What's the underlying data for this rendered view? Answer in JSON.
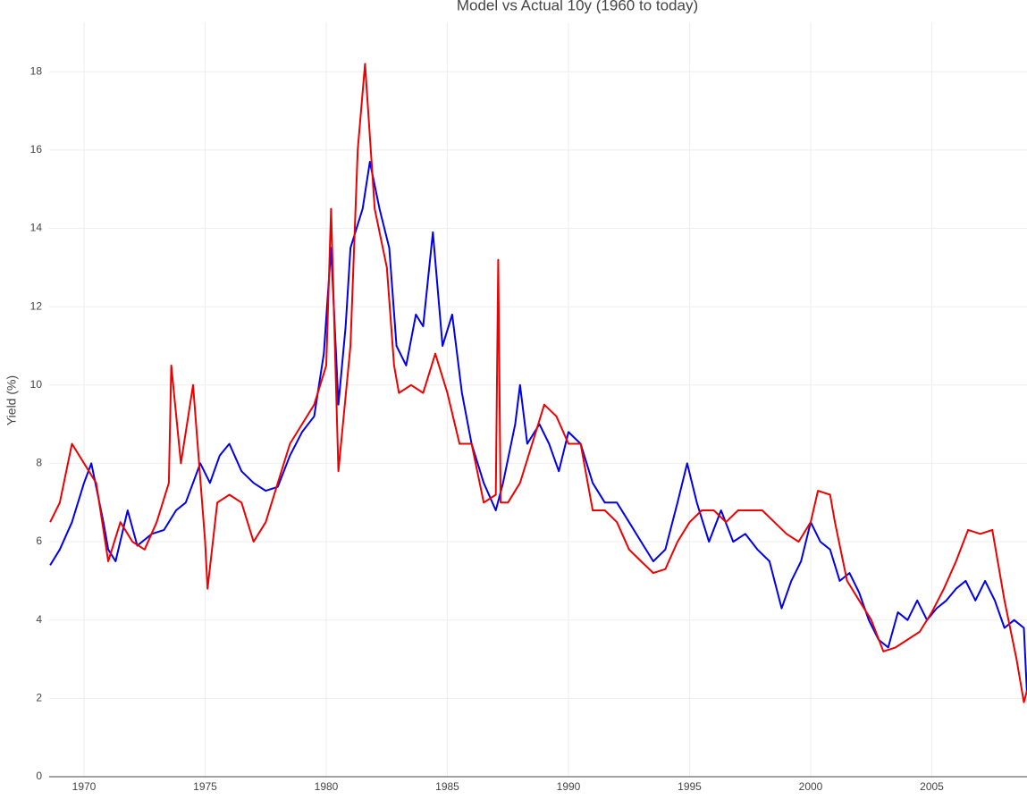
{
  "chart_data": {
    "type": "line",
    "title": "Model vs Actual 10y (1960 to today)",
    "y_label": "Yield (%)",
    "grid": true,
    "xlim": [
      1968.56,
      2008.93
    ],
    "xticks": [
      1970,
      1975,
      1980,
      1985,
      1990,
      1995,
      2000,
      2005
    ],
    "ylim": [
      0,
      19.26
    ],
    "yticks": [
      0,
      2,
      4,
      6,
      8,
      10,
      12,
      14,
      16,
      18
    ],
    "series": [
      {
        "color": "#0000ee",
        "x": [
          1968.6,
          1969.0,
          1969.5,
          1970.0,
          1970.3,
          1970.8,
          1971.0,
          1971.3,
          1971.8,
          1972.2,
          1972.8,
          1973.3,
          1973.8,
          1974.2,
          1974.8,
          1975.2,
          1975.6,
          1976.0,
          1976.5,
          1977.0,
          1977.5,
          1978.0,
          1978.5,
          1979.0,
          1979.5,
          1979.9,
          1980.2,
          1980.5,
          1980.8,
          1981.0,
          1981.5,
          1981.8,
          1982.2,
          1982.6,
          1982.9,
          1983.3,
          1983.7,
          1984.0,
          1984.4,
          1984.8,
          1985.2,
          1985.6,
          1986.0,
          1986.5,
          1987.0,
          1987.3,
          1987.8,
          1988.0,
          1988.3,
          1988.8,
          1989.2,
          1989.6,
          1990.0,
          1990.5,
          1991.0,
          1991.5,
          1992.0,
          1992.5,
          1993.0,
          1993.5,
          1994.0,
          1994.5,
          1994.9,
          1995.3,
          1995.8,
          1996.3,
          1996.8,
          1997.3,
          1997.8,
          1998.3,
          1998.8,
          1999.2,
          1999.6,
          2000.0,
          2000.4,
          2000.8,
          2001.2,
          2001.6,
          2002.0,
          2002.4,
          2002.8,
          2003.2,
          2003.6,
          2004.0,
          2004.4,
          2004.8,
          2005.2,
          2005.6,
          2006.0,
          2006.4,
          2006.8,
          2007.2,
          2007.6,
          2008.0,
          2008.4,
          2008.8,
          2008.93
        ],
        "values": [
          5.4,
          5.8,
          6.5,
          7.5,
          8.0,
          6.5,
          5.8,
          5.5,
          6.8,
          5.9,
          6.2,
          6.3,
          6.8,
          7.0,
          8.0,
          7.5,
          8.2,
          8.5,
          7.8,
          7.5,
          7.3,
          7.4,
          8.2,
          8.8,
          9.2,
          10.8,
          13.5,
          9.5,
          11.5,
          13.5,
          14.5,
          15.7,
          14.5,
          13.5,
          11.0,
          10.5,
          11.8,
          11.5,
          13.9,
          11.0,
          11.8,
          9.8,
          8.5,
          7.5,
          6.8,
          7.5,
          9.0,
          10.0,
          8.5,
          9.0,
          8.5,
          7.8,
          8.8,
          8.5,
          7.5,
          7.0,
          7.0,
          6.5,
          6.0,
          5.5,
          5.8,
          7.0,
          8.0,
          7.0,
          6.0,
          6.8,
          6.0,
          6.2,
          5.8,
          5.5,
          4.3,
          5.0,
          5.5,
          6.5,
          6.0,
          5.8,
          5.0,
          5.2,
          4.7,
          4.0,
          3.5,
          3.3,
          4.2,
          4.0,
          4.5,
          4.0,
          4.3,
          4.5,
          4.8,
          5.0,
          4.5,
          5.0,
          4.5,
          3.8,
          4.0,
          3.8,
          2.1
        ]
      },
      {
        "color": "#ee0000",
        "x": [
          1968.6,
          1969.0,
          1969.5,
          1970.0,
          1970.5,
          1971.0,
          1971.5,
          1972.0,
          1972.5,
          1973.0,
          1973.5,
          1973.6,
          1974.0,
          1974.5,
          1975.0,
          1975.1,
          1975.5,
          1976.0,
          1976.5,
          1977.0,
          1977.5,
          1978.0,
          1978.5,
          1979.0,
          1979.5,
          1980.0,
          1980.2,
          1980.5,
          1981.0,
          1981.3,
          1981.6,
          1982.0,
          1982.5,
          1982.8,
          1983.0,
          1983.5,
          1984.0,
          1984.5,
          1985.0,
          1985.5,
          1986.0,
          1986.5,
          1987.0,
          1987.1,
          1987.2,
          1987.5,
          1988.0,
          1988.5,
          1989.0,
          1989.5,
          1990.0,
          1990.5,
          1991.0,
          1991.5,
          1992.0,
          1992.5,
          1993.0,
          1993.5,
          1994.0,
          1994.5,
          1995.0,
          1995.5,
          1996.0,
          1996.5,
          1997.0,
          1997.5,
          1998.0,
          1998.5,
          1999.0,
          1999.5,
          2000.0,
          2000.3,
          2000.8,
          2001.0,
          2001.5,
          2002.0,
          2002.5,
          2003.0,
          2003.5,
          2004.0,
          2004.5,
          2005.0,
          2005.5,
          2006.0,
          2006.5,
          2007.0,
          2007.5,
          2008.0,
          2008.5,
          2008.8,
          2008.93
        ],
        "values": [
          6.5,
          7.0,
          8.5,
          8.0,
          7.5,
          5.5,
          6.5,
          6.0,
          5.8,
          6.5,
          7.5,
          10.5,
          8.0,
          10.0,
          6.0,
          4.8,
          7.0,
          7.2,
          7.0,
          6.0,
          6.5,
          7.5,
          8.5,
          9.0,
          9.5,
          10.5,
          14.5,
          7.8,
          11.0,
          16.0,
          18.2,
          14.5,
          13.0,
          10.5,
          9.8,
          10.0,
          9.8,
          10.8,
          9.8,
          8.5,
          8.5,
          7.0,
          7.2,
          13.2,
          7.0,
          7.0,
          7.5,
          8.5,
          9.5,
          9.2,
          8.5,
          8.5,
          6.8,
          6.8,
          6.5,
          5.8,
          5.5,
          5.2,
          5.3,
          6.0,
          6.5,
          6.8,
          6.8,
          6.5,
          6.8,
          6.8,
          6.8,
          6.5,
          6.2,
          6.0,
          6.5,
          7.3,
          7.2,
          6.5,
          5.0,
          4.5,
          4.0,
          3.2,
          3.3,
          3.5,
          3.7,
          4.2,
          4.8,
          5.5,
          6.3,
          6.2,
          6.3,
          4.5,
          3.0,
          1.9,
          2.2
        ]
      }
    ]
  }
}
